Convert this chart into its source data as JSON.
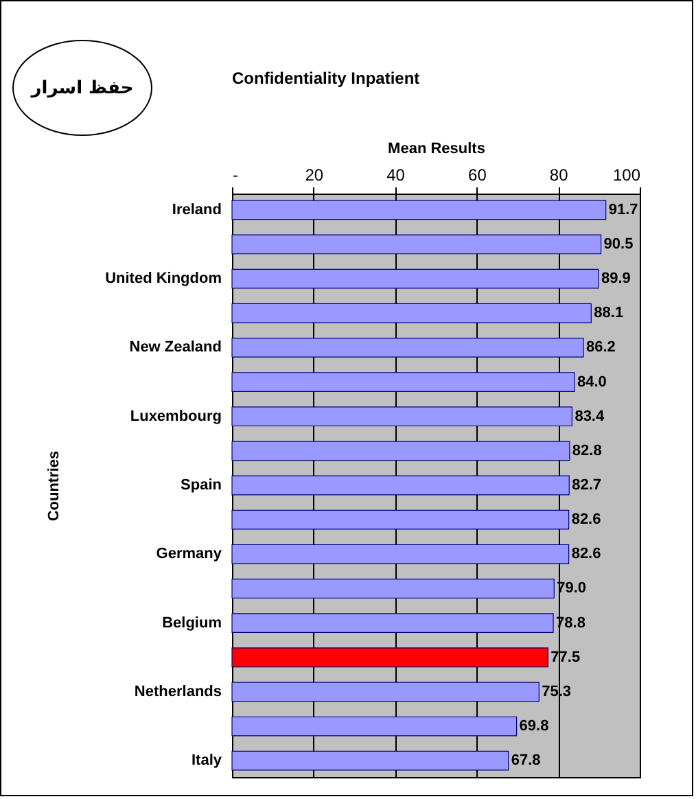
{
  "chart_data": {
    "type": "bar",
    "orientation": "horizontal",
    "title": "Confidentiality Inpatient",
    "xlabel": "Mean Results",
    "ylabel": "Countries",
    "annotations": [
      "حفظ اسرار"
    ],
    "categories": [
      "Ireland",
      null,
      "United Kingdom",
      null,
      "New Zealand",
      null,
      "Luxembourg",
      null,
      "Spain",
      null,
      "Germany",
      null,
      "Belgium",
      null,
      "Netherlands",
      null,
      "Italy"
    ],
    "values": [
      91.7,
      90.5,
      89.9,
      88.1,
      86.2,
      84.0,
      83.4,
      82.8,
      82.7,
      82.6,
      82.6,
      79.0,
      78.8,
      77.5,
      75.3,
      69.8,
      67.8
    ],
    "value_labels": [
      "91.7",
      "90.5",
      "89.9",
      "88.1",
      "86.2",
      "84.0",
      "83.4",
      "82.8",
      "82.7",
      "82.6",
      "82.6",
      "79.0",
      "78.8",
      "77.5",
      "75.3",
      "69.8",
      "67.8"
    ],
    "colors": [
      "#9999ff",
      "#9999ff",
      "#9999ff",
      "#9999ff",
      "#9999ff",
      "#9999ff",
      "#9999ff",
      "#9999ff",
      "#9999ff",
      "#9999ff",
      "#9999ff",
      "#9999ff",
      "#9999ff",
      "#ff0000",
      "#9999ff",
      "#9999ff",
      "#9999ff"
    ],
    "xlim": [
      0,
      100
    ],
    "xticks": [
      {
        "value": 0,
        "label": "-"
      },
      20,
      40,
      60,
      80,
      100
    ],
    "grid": "x"
  }
}
